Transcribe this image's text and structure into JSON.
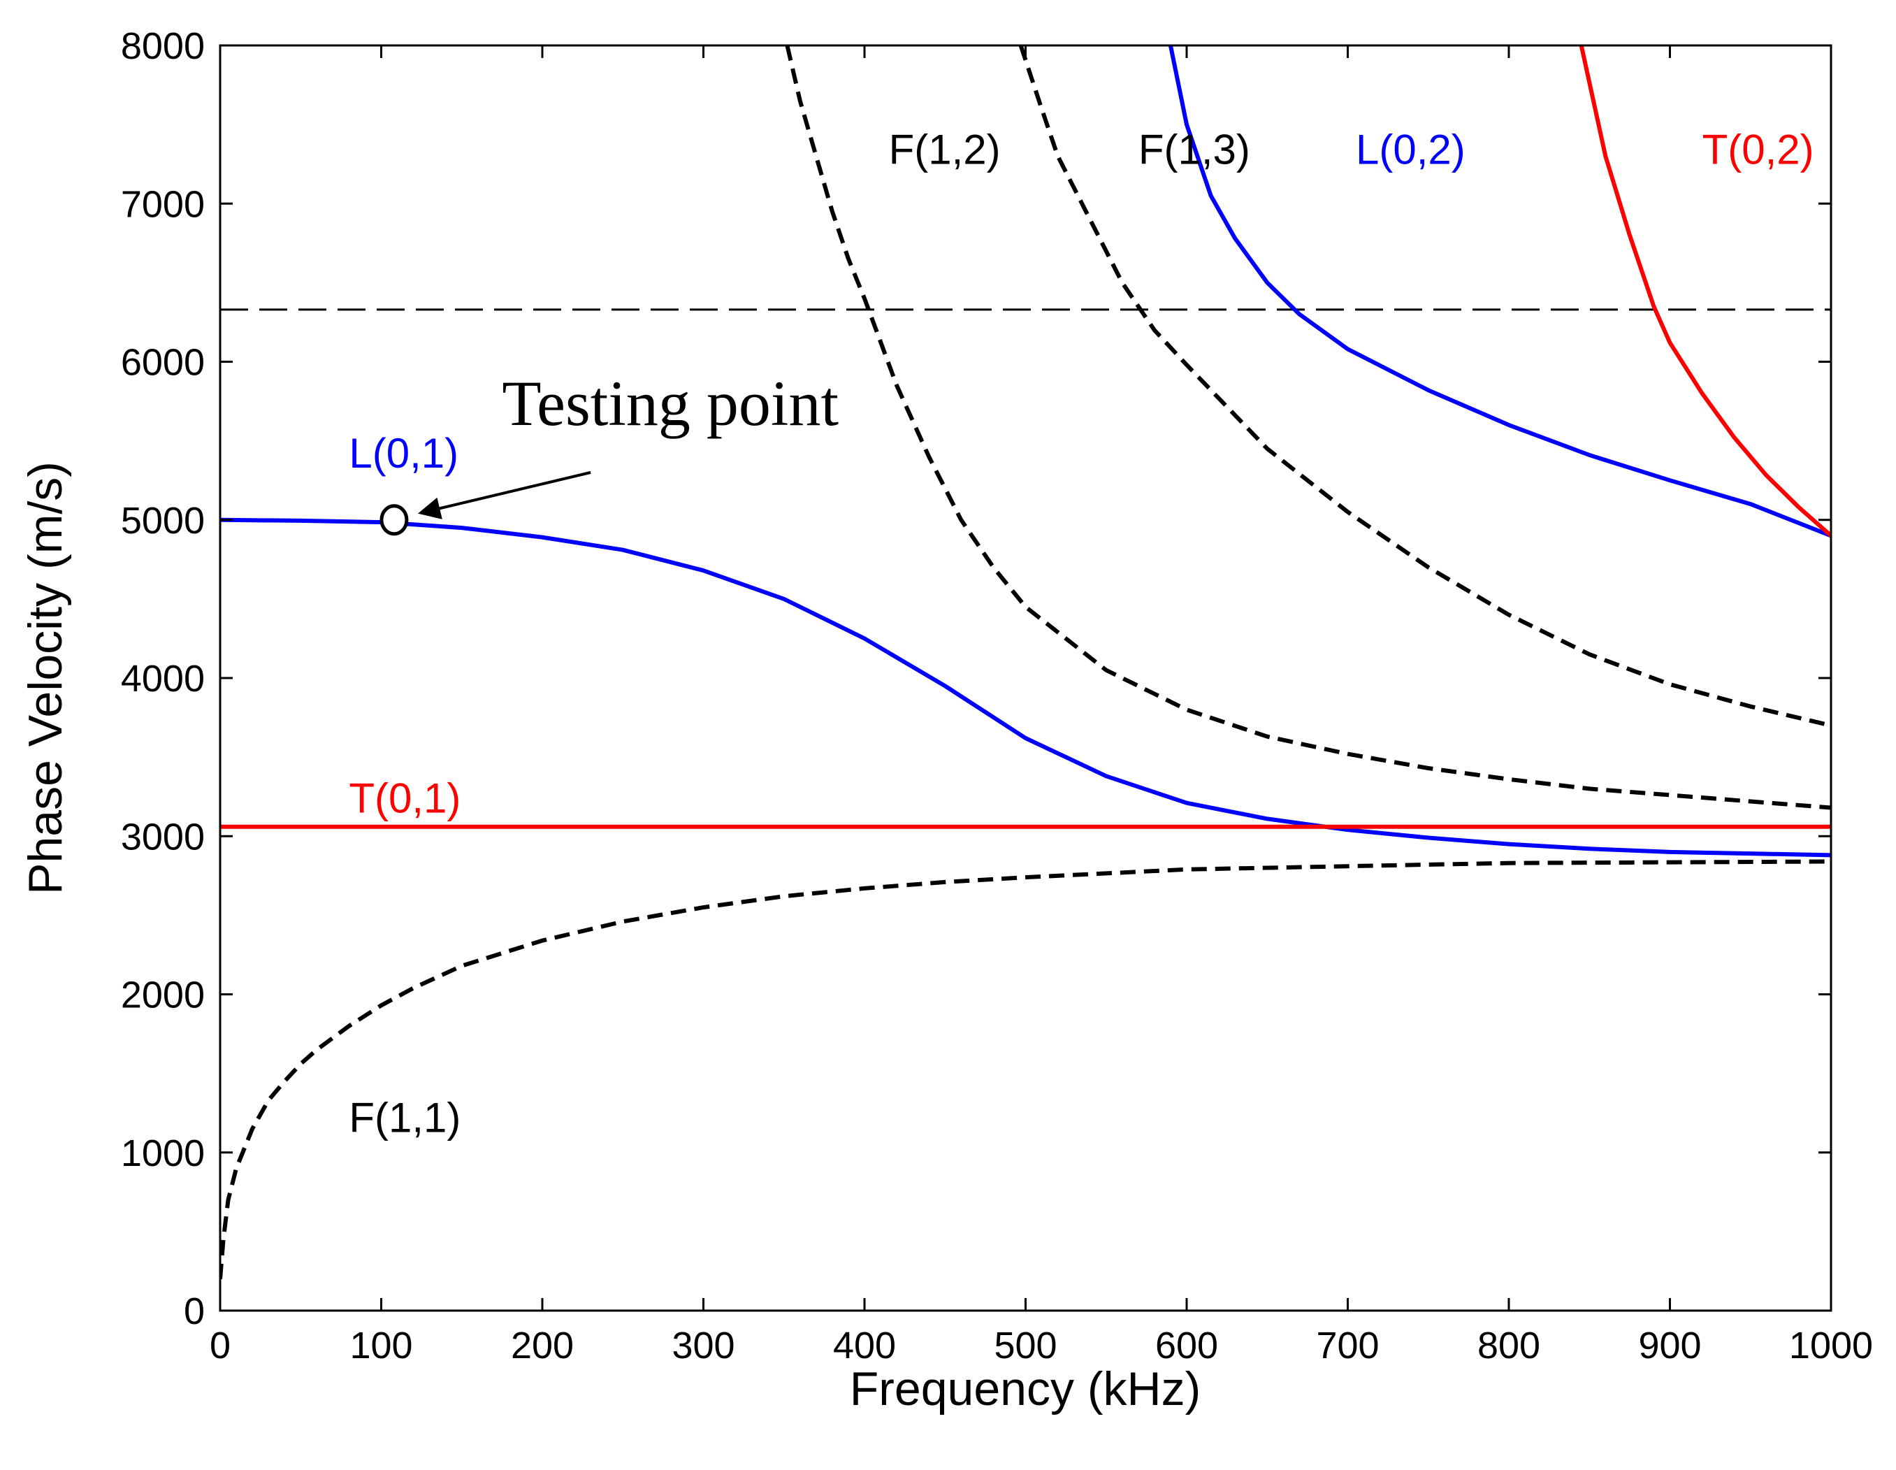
{
  "chart_data": {
    "type": "line",
    "title": "",
    "xlabel": "Frequency (kHz)",
    "ylabel": "Phase Velocity (m/s)",
    "xlim": [
      0,
      1000
    ],
    "ylim": [
      0,
      8000
    ],
    "xticks": [
      0,
      100,
      200,
      300,
      400,
      500,
      600,
      700,
      800,
      900,
      1000
    ],
    "yticks": [
      0,
      1000,
      2000,
      3000,
      4000,
      5000,
      6000,
      7000,
      8000
    ],
    "xtick_labels": [
      "0",
      "100",
      "200",
      "300",
      "400",
      "500",
      "600",
      "700",
      "800",
      "900",
      "1000"
    ],
    "ytick_labels": [
      "0",
      "1000",
      "2000",
      "3000",
      "4000",
      "5000",
      "6000",
      "7000",
      "8000"
    ],
    "grid": false,
    "reference_line": {
      "y": 6330,
      "style": "long-dash",
      "color": "#000000"
    },
    "series": [
      {
        "name": "L(0,1)",
        "color": "#0000ff",
        "style": "solid",
        "label": {
          "text": "L(0,1)",
          "x": 80,
          "y": 5330
        },
        "x": [
          0,
          50,
          100,
          150,
          200,
          250,
          300,
          350,
          400,
          450,
          500,
          550,
          600,
          650,
          700,
          750,
          800,
          850,
          900,
          950,
          1000
        ],
        "y": [
          5000,
          4995,
          4985,
          4950,
          4890,
          4810,
          4680,
          4500,
          4250,
          3950,
          3620,
          3380,
          3210,
          3110,
          3040,
          2990,
          2950,
          2920,
          2900,
          2890,
          2880
        ]
      },
      {
        "name": "L(0,2)",
        "color": "#0000ff",
        "style": "solid",
        "label": {
          "text": "L(0,2)",
          "x": 705,
          "y": 7250
        },
        "x": [
          590,
          600,
          615,
          630,
          650,
          670,
          700,
          750,
          800,
          850,
          900,
          950,
          1000
        ],
        "y": [
          8000,
          7500,
          7050,
          6780,
          6500,
          6300,
          6080,
          5820,
          5600,
          5410,
          5250,
          5100,
          4900
        ]
      },
      {
        "name": "T(0,1)",
        "color": "#ff0000",
        "style": "solid",
        "label": {
          "text": "T(0,1)",
          "x": 80,
          "y": 3150
        },
        "x": [
          0,
          1000
        ],
        "y": [
          3060,
          3060
        ]
      },
      {
        "name": "T(0,2)",
        "color": "#ff0000",
        "style": "solid",
        "label": {
          "text": "T(0,2)",
          "x": 920,
          "y": 7250
        },
        "x": [
          845,
          860,
          875,
          890,
          900,
          920,
          940,
          960,
          980,
          1000
        ],
        "y": [
          8000,
          7300,
          6800,
          6350,
          6120,
          5800,
          5520,
          5280,
          5080,
          4900
        ]
      },
      {
        "name": "F(1,1)",
        "color": "#000000",
        "style": "dashed",
        "label": {
          "text": "F(1,1)",
          "x": 80,
          "y": 1130
        },
        "x": [
          0,
          2,
          5,
          10,
          20,
          30,
          40,
          50,
          60,
          80,
          100,
          120,
          150,
          200,
          250,
          300,
          350,
          400,
          450,
          500,
          600,
          700,
          800,
          900,
          1000
        ],
        "y": [
          200,
          450,
          700,
          900,
          1150,
          1330,
          1450,
          1560,
          1650,
          1800,
          1930,
          2040,
          2180,
          2340,
          2460,
          2550,
          2620,
          2670,
          2710,
          2740,
          2790,
          2810,
          2830,
          2835,
          2840
        ]
      },
      {
        "name": "F(1,2)",
        "color": "#000000",
        "style": "dashed",
        "label": {
          "text": "F(1,2)",
          "x": 415,
          "y": 7250
        },
        "x": [
          352,
          360,
          370,
          380,
          390,
          400,
          420,
          440,
          460,
          480,
          500,
          550,
          600,
          650,
          700,
          750,
          800,
          850,
          900,
          950,
          1000
        ],
        "y": [
          8000,
          7650,
          7300,
          6950,
          6650,
          6400,
          5850,
          5400,
          5000,
          4700,
          4450,
          4050,
          3800,
          3630,
          3520,
          3430,
          3360,
          3300,
          3260,
          3220,
          3180
        ]
      },
      {
        "name": "F(1,3)",
        "color": "#000000",
        "style": "dashed",
        "label": {
          "text": "F(1,3)",
          "x": 570,
          "y": 7250
        },
        "x": [
          497,
          510,
          520,
          530,
          540,
          560,
          580,
          600,
          650,
          700,
          750,
          800,
          850,
          900,
          950,
          1000
        ],
        "y": [
          8000,
          7600,
          7300,
          7100,
          6900,
          6500,
          6200,
          5980,
          5450,
          5050,
          4700,
          4400,
          4150,
          3960,
          3820,
          3700
        ]
      }
    ],
    "annotation": {
      "text": "Testing point",
      "point": {
        "x": 108,
        "y": 5000
      },
      "arrow_tail": {
        "x": 230,
        "y": 5300
      },
      "text_anchor": {
        "x": 175,
        "y": 5600
      }
    }
  }
}
